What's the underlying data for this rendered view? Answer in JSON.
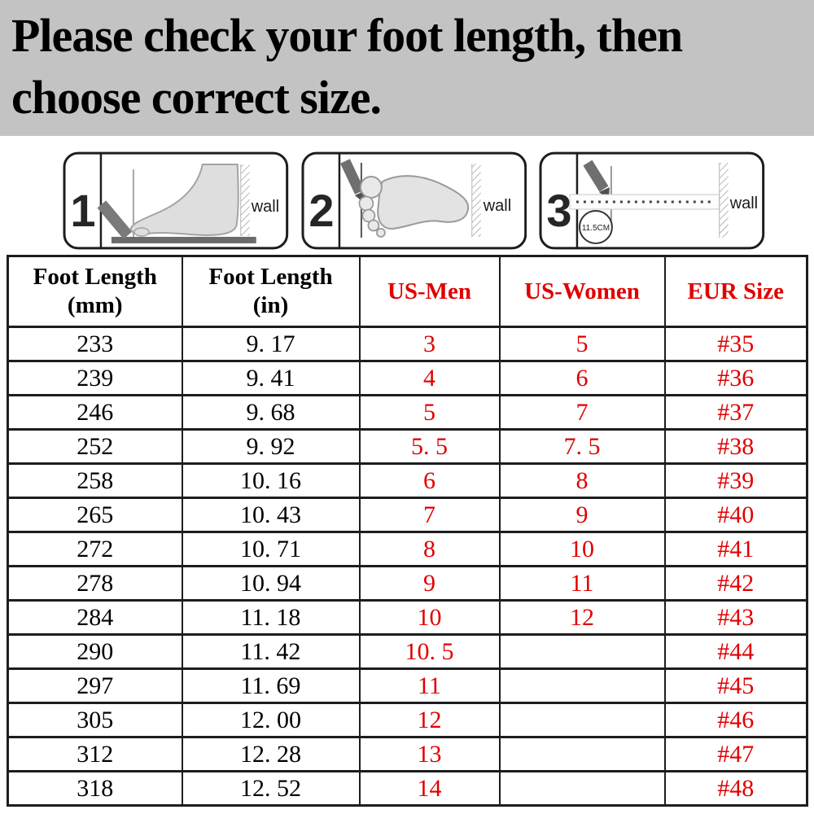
{
  "banner": {
    "line1": "Please check your foot length, then",
    "line2": "choose correct size."
  },
  "steps": [
    {
      "number": "1",
      "wall_label": "wall"
    },
    {
      "number": "2",
      "wall_label": "wall"
    },
    {
      "number": "3",
      "wall_label": "wall",
      "ruler_label": "11.5CM"
    }
  ],
  "table": {
    "headers": [
      {
        "line1": "Foot Length",
        "line2": "(mm)"
      },
      {
        "line1": "Foot Length",
        "line2": "(in)"
      },
      {
        "line1": "US-Men"
      },
      {
        "line1": "US-Women"
      },
      {
        "line1": "EUR Size"
      }
    ],
    "column_styles": [
      "black",
      "black",
      "red",
      "red",
      "red"
    ],
    "rows": [
      [
        "233",
        "9. 17",
        "3",
        "5",
        "#35"
      ],
      [
        "239",
        "9. 41",
        "4",
        "6",
        "#36"
      ],
      [
        "246",
        "9. 68",
        "5",
        "7",
        "#37"
      ],
      [
        "252",
        "9. 92",
        "5. 5",
        "7. 5",
        "#38"
      ],
      [
        "258",
        "10. 16",
        "6",
        "8",
        "#39"
      ],
      [
        "265",
        "10. 43",
        "7",
        "9",
        "#40"
      ],
      [
        "272",
        "10. 71",
        "8",
        "10",
        "#41"
      ],
      [
        "278",
        "10. 94",
        "9",
        "11",
        "#42"
      ],
      [
        "284",
        "11. 18",
        "10",
        "12",
        "#43"
      ],
      [
        "290",
        "11. 42",
        "10. 5",
        "",
        "#44"
      ],
      [
        "297",
        "11. 69",
        "11",
        "",
        "#45"
      ],
      [
        "305",
        "12. 00",
        "12",
        "",
        "#46"
      ],
      [
        "312",
        "12. 28",
        "13",
        "",
        "#47"
      ],
      [
        "318",
        "12. 52",
        "14",
        "",
        "#48"
      ]
    ]
  },
  "colors": {
    "accent_red": "#e00000",
    "banner_bg": "#c3c3c3",
    "table_border": "#1d1d1d"
  }
}
